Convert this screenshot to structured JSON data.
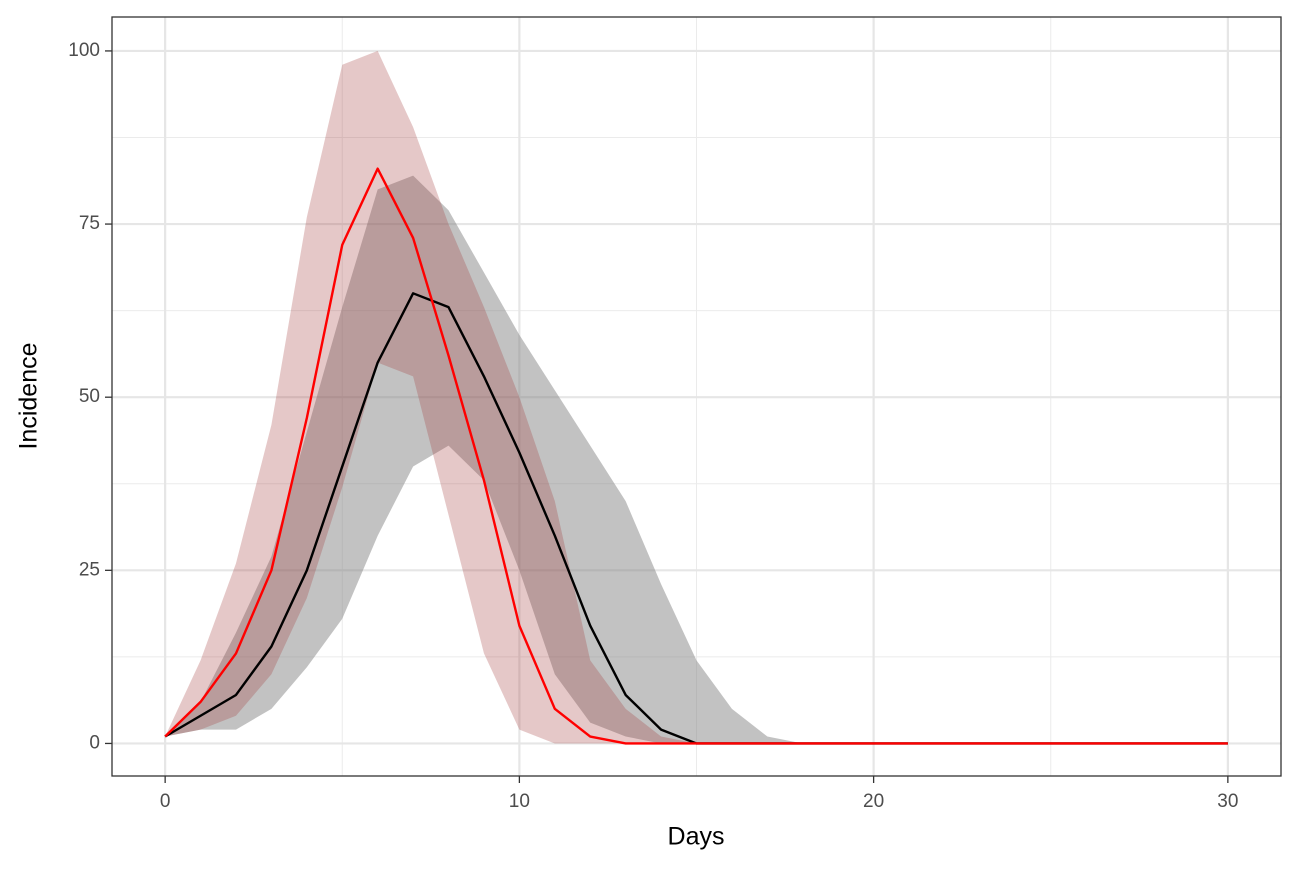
{
  "chart_data": {
    "type": "ribbon-line",
    "x_label": "Days",
    "y_label": "Incidence",
    "x": [
      0,
      1,
      2,
      3,
      4,
      5,
      6,
      7,
      8,
      9,
      10,
      11,
      12,
      13,
      14,
      15,
      16,
      17,
      18,
      19,
      20,
      21,
      22,
      23,
      24,
      25,
      26,
      27,
      28,
      29,
      30
    ],
    "series": [
      {
        "color": "#000000",
        "band_color": "#7f7f7f",
        "values": [
          1,
          4,
          7,
          14,
          25,
          40,
          55,
          65,
          63,
          53,
          42,
          30,
          17,
          7,
          2,
          0,
          0,
          0,
          0,
          0,
          0,
          0,
          0,
          0,
          0,
          0,
          0,
          0,
          0,
          0,
          0
        ],
        "lower": [
          1,
          2,
          2,
          5,
          11,
          18,
          30,
          40,
          43,
          38,
          25,
          10,
          3,
          1,
          0,
          0,
          0,
          0,
          0,
          0,
          0,
          0,
          0,
          0,
          0,
          0,
          0,
          0,
          0,
          0,
          0
        ],
        "upper": [
          1,
          6,
          16,
          27,
          45,
          63,
          80,
          82,
          77,
          68,
          59,
          51,
          43,
          35,
          23,
          12,
          5,
          1,
          0,
          0,
          0,
          0,
          0,
          0,
          0,
          0,
          0,
          0,
          0,
          0,
          0
        ]
      },
      {
        "color": "#ff0000",
        "band_color": "#a33a3a",
        "values": [
          1,
          6,
          13,
          25,
          47,
          72,
          83,
          73,
          56,
          38,
          17,
          5,
          1,
          0,
          0,
          0,
          0,
          0,
          0,
          0,
          0,
          0,
          0,
          0,
          0,
          0,
          0,
          0,
          0,
          0,
          0
        ],
        "lower": [
          1,
          2,
          4,
          10,
          21,
          37,
          55,
          53,
          33,
          13,
          2,
          0,
          0,
          0,
          0,
          0,
          0,
          0,
          0,
          0,
          0,
          0,
          0,
          0,
          0,
          0,
          0,
          0,
          0,
          0,
          0
        ],
        "upper": [
          1,
          12,
          26,
          46,
          76,
          98,
          100,
          89,
          75,
          63,
          50,
          35,
          12,
          5,
          1,
          0,
          0,
          0,
          0,
          0,
          0,
          0,
          0,
          0,
          0,
          0,
          0,
          0,
          0,
          0,
          0
        ]
      }
    ],
    "xlim": [
      -1.5,
      31.5
    ],
    "ylim": [
      -4.7,
      104.9
    ],
    "xticks": [
      0,
      10,
      20,
      30
    ],
    "yticks": [
      0,
      25,
      50,
      75,
      100
    ],
    "xminor": [
      5,
      15,
      25
    ],
    "yminor": [
      12.5,
      37.5,
      62.5,
      87.5
    ],
    "grid": true
  }
}
